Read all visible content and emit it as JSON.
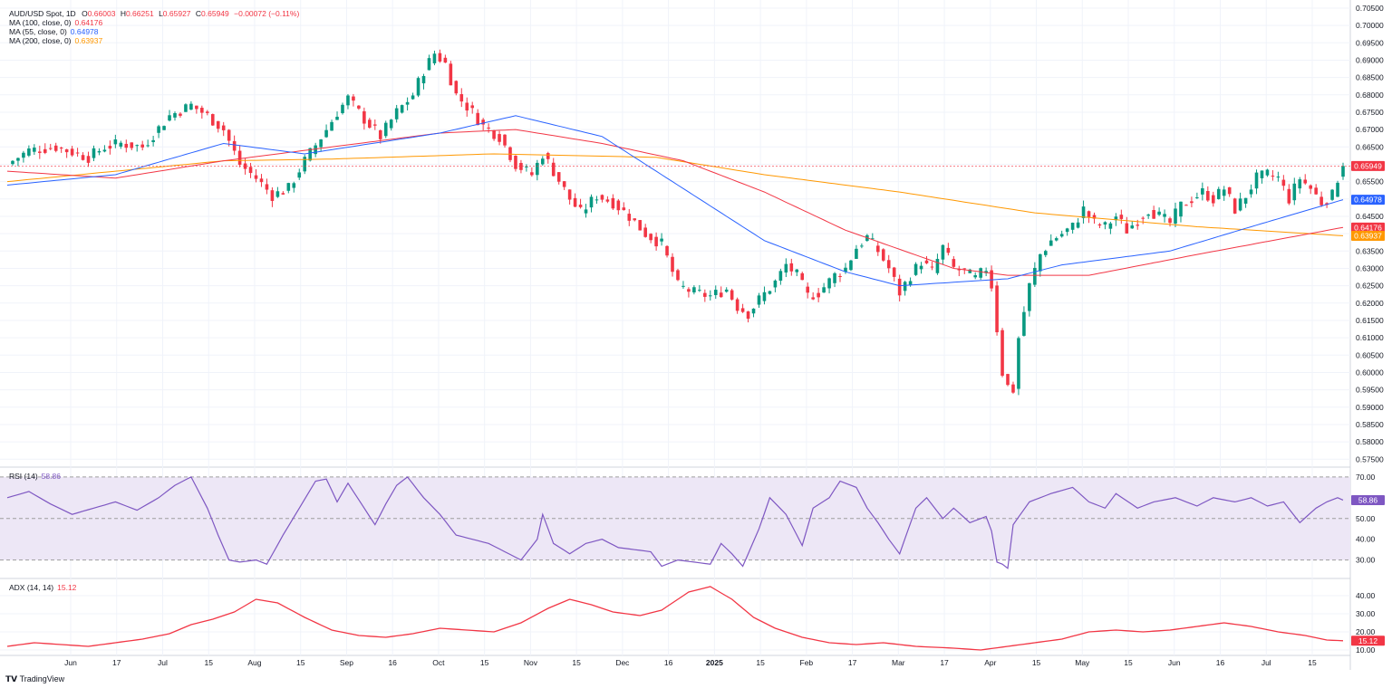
{
  "header": {
    "symbol": "AUD/USD Spot, 1D",
    "o_label": "O",
    "o": "0.66003",
    "h_label": "H",
    "h": "0.66251",
    "l_label": "L",
    "l": "0.65927",
    "c_label": "C",
    "c": "0.65949",
    "change": "−0.00072 (−0.11%)"
  },
  "indicators": [
    {
      "label": "MA (100, close, 0)",
      "value": "0.64176",
      "color": "#f23645"
    },
    {
      "label": "MA (55, close, 0)",
      "value": "0.64978",
      "color": "#2962ff"
    },
    {
      "label": "MA (200, close, 0)",
      "value": "0.63937",
      "color": "#ff9800"
    }
  ],
  "rsi": {
    "label": "RSI (14)",
    "value": "58.86",
    "color": "#7e57c2"
  },
  "adx": {
    "label": "ADX (14, 14)",
    "value": "15.12",
    "color": "#f23645"
  },
  "branding": "TradingView",
  "colors": {
    "up": "#089981",
    "down": "#f23645",
    "grid": "#f0f3fa",
    "rsi_band": "#ede7f6"
  },
  "chart_data": [
    {
      "type": "candlestick",
      "title": "AUD/USD Spot, 1D",
      "ylim": [
        0.57325,
        0.70525
      ],
      "y_ticks": [
        "0.70500",
        "0.70000",
        "0.69500",
        "0.69000",
        "0.68500",
        "0.68000",
        "0.67500",
        "0.67000",
        "0.66500",
        "0.66000",
        "0.65500",
        "0.65000",
        "0.64500",
        "0.64000",
        "0.63500",
        "0.63000",
        "0.62500",
        "0.62000",
        "0.61500",
        "0.61000",
        "0.60500",
        "0.60000",
        "0.59500",
        "0.59000",
        "0.58500",
        "0.58000",
        "0.57500"
      ],
      "x_ticks": [
        "Jun",
        "17",
        "Jul",
        "15",
        "Aug",
        "15",
        "Sep",
        "16",
        "Oct",
        "15",
        "Nov",
        "15",
        "Dec",
        "16",
        "2025",
        "15",
        "Feb",
        "17",
        "Mar",
        "17",
        "Apr",
        "15",
        "May",
        "15",
        "Jun",
        "16",
        "Jul",
        "15"
      ],
      "close_anchors": [
        [
          0,
          0.66
        ],
        [
          4,
          0.664
        ],
        [
          9,
          0.665
        ],
        [
          15,
          0.662
        ],
        [
          18,
          0.665
        ],
        [
          21,
          0.666
        ],
        [
          25,
          0.665
        ],
        [
          30,
          0.674
        ],
        [
          34,
          0.677
        ],
        [
          37,
          0.674
        ],
        [
          40,
          0.67
        ],
        [
          43,
          0.66
        ],
        [
          46,
          0.656
        ],
        [
          49,
          0.651
        ],
        [
          52,
          0.653
        ],
        [
          55,
          0.661
        ],
        [
          59,
          0.67
        ],
        [
          61,
          0.675
        ],
        [
          63,
          0.679
        ],
        [
          66,
          0.673
        ],
        [
          69,
          0.668
        ],
        [
          72,
          0.675
        ],
        [
          75,
          0.68
        ],
        [
          77,
          0.687
        ],
        [
          79,
          0.692
        ],
        [
          81,
          0.689
        ],
        [
          83,
          0.68
        ],
        [
          86,
          0.675
        ],
        [
          88,
          0.671
        ],
        [
          91,
          0.668
        ],
        [
          94,
          0.66
        ],
        [
          97,
          0.657
        ],
        [
          99,
          0.663
        ],
        [
          101,
          0.658
        ],
        [
          104,
          0.65
        ],
        [
          106,
          0.646
        ],
        [
          109,
          0.651
        ],
        [
          112,
          0.649
        ],
        [
          115,
          0.645
        ],
        [
          118,
          0.64
        ],
        [
          121,
          0.637
        ],
        [
          124,
          0.625
        ],
        [
          127,
          0.623
        ],
        [
          130,
          0.622
        ],
        [
          133,
          0.624
        ],
        [
          135,
          0.619
        ],
        [
          137,
          0.617
        ],
        [
          139,
          0.621
        ],
        [
          142,
          0.626
        ],
        [
          144,
          0.631
        ],
        [
          146,
          0.628
        ],
        [
          148,
          0.622
        ],
        [
          150,
          0.623
        ],
        [
          153,
          0.628
        ],
        [
          155,
          0.63
        ],
        [
          157,
          0.636
        ],
        [
          159,
          0.639
        ],
        [
          161,
          0.635
        ],
        [
          163,
          0.63
        ],
        [
          165,
          0.623
        ],
        [
          167,
          0.628
        ],
        [
          169,
          0.632
        ],
        [
          171,
          0.629
        ],
        [
          173,
          0.636
        ],
        [
          175,
          0.63
        ],
        [
          177,
          0.629
        ],
        [
          179,
          0.627
        ],
        [
          181,
          0.63
        ],
        [
          182,
          0.625
        ],
        [
          184,
          0.6
        ],
        [
          185,
          0.596
        ],
        [
          186,
          0.595
        ],
        [
          187,
          0.61
        ],
        [
          189,
          0.625
        ],
        [
          191,
          0.634
        ],
        [
          193,
          0.638
        ],
        [
          195,
          0.64
        ],
        [
          197,
          0.642
        ],
        [
          199,
          0.647
        ],
        [
          201,
          0.643
        ],
        [
          203,
          0.642
        ],
        [
          205,
          0.645
        ],
        [
          207,
          0.641
        ],
        [
          209,
          0.644
        ],
        [
          211,
          0.647
        ],
        [
          213,
          0.645
        ],
        [
          215,
          0.643
        ],
        [
          217,
          0.648
        ],
        [
          219,
          0.65
        ],
        [
          221,
          0.652
        ],
        [
          223,
          0.65
        ],
        [
          225,
          0.653
        ],
        [
          227,
          0.647
        ],
        [
          229,
          0.651
        ],
        [
          231,
          0.656
        ],
        [
          233,
          0.657
        ],
        [
          235,
          0.656
        ],
        [
          237,
          0.65
        ],
        [
          239,
          0.656
        ],
        [
          241,
          0.653
        ],
        [
          243,
          0.649
        ],
        [
          245,
          0.651
        ],
        [
          246,
          0.656
        ],
        [
          247,
          0.6595
        ]
      ],
      "ma_anchors": {
        "ma55": [
          [
            0,
            0.654
          ],
          [
            20,
            0.657
          ],
          [
            40,
            0.666
          ],
          [
            55,
            0.663
          ],
          [
            80,
            0.669
          ],
          [
            94,
            0.674
          ],
          [
            110,
            0.668
          ],
          [
            125,
            0.653
          ],
          [
            140,
            0.638
          ],
          [
            155,
            0.629
          ],
          [
            165,
            0.625
          ],
          [
            175,
            0.626
          ],
          [
            185,
            0.627
          ],
          [
            195,
            0.631
          ],
          [
            215,
            0.635
          ],
          [
            230,
            0.642
          ],
          [
            247,
            0.6498
          ]
        ],
        "ma100": [
          [
            0,
            0.658
          ],
          [
            20,
            0.656
          ],
          [
            40,
            0.661
          ],
          [
            60,
            0.665
          ],
          [
            80,
            0.669
          ],
          [
            94,
            0.67
          ],
          [
            110,
            0.666
          ],
          [
            125,
            0.661
          ],
          [
            140,
            0.652
          ],
          [
            155,
            0.641
          ],
          [
            175,
            0.63
          ],
          [
            185,
            0.628
          ],
          [
            200,
            0.628
          ],
          [
            220,
            0.634
          ],
          [
            247,
            0.6418
          ]
        ],
        "ma200": [
          [
            0,
            0.655
          ],
          [
            20,
            0.658
          ],
          [
            40,
            0.661
          ],
          [
            60,
            0.6615
          ],
          [
            90,
            0.663
          ],
          [
            120,
            0.662
          ],
          [
            140,
            0.657
          ],
          [
            165,
            0.652
          ],
          [
            190,
            0.646
          ],
          [
            220,
            0.642
          ],
          [
            247,
            0.6394
          ]
        ]
      },
      "last_labels": {
        "close": "0.65949",
        "ma55": "0.64978",
        "ma100": "0.64176",
        "ma200": "0.63937"
      }
    },
    {
      "type": "line",
      "title": "RSI (14)",
      "ylim": [
        22,
        73
      ],
      "y_ticks": [
        "70.00",
        "60.00",
        "50.00",
        "40.00",
        "30.00"
      ],
      "bands": [
        70,
        50,
        30
      ],
      "anchors": [
        [
          0,
          60
        ],
        [
          4,
          63
        ],
        [
          8,
          57
        ],
        [
          12,
          52
        ],
        [
          16,
          55
        ],
        [
          20,
          58
        ],
        [
          24,
          54
        ],
        [
          28,
          60
        ],
        [
          31,
          66
        ],
        [
          34,
          70
        ],
        [
          37,
          55
        ],
        [
          39,
          42
        ],
        [
          41,
          30
        ],
        [
          43,
          29
        ],
        [
          46,
          30
        ],
        [
          48,
          28
        ],
        [
          51,
          42
        ],
        [
          54,
          55
        ],
        [
          57,
          68
        ],
        [
          59,
          69
        ],
        [
          61,
          58
        ],
        [
          63,
          67
        ],
        [
          66,
          55
        ],
        [
          68,
          47
        ],
        [
          70,
          57
        ],
        [
          72,
          66
        ],
        [
          74,
          70
        ],
        [
          77,
          60
        ],
        [
          80,
          52
        ],
        [
          83,
          42
        ],
        [
          86,
          40
        ],
        [
          89,
          38
        ],
        [
          92,
          34
        ],
        [
          95,
          30
        ],
        [
          98,
          40
        ],
        [
          99,
          52
        ],
        [
          101,
          38
        ],
        [
          104,
          33
        ],
        [
          107,
          38
        ],
        [
          110,
          40
        ],
        [
          113,
          36
        ],
        [
          116,
          35
        ],
        [
          119,
          34
        ],
        [
          121,
          27
        ],
        [
          124,
          30
        ],
        [
          127,
          29
        ],
        [
          130,
          28
        ],
        [
          132,
          38
        ],
        [
          134,
          33
        ],
        [
          136,
          27
        ],
        [
          139,
          45
        ],
        [
          141,
          60
        ],
        [
          144,
          52
        ],
        [
          147,
          37
        ],
        [
          149,
          55
        ],
        [
          152,
          60
        ],
        [
          154,
          68
        ],
        [
          157,
          65
        ],
        [
          159,
          55
        ],
        [
          161,
          48
        ],
        [
          163,
          40
        ],
        [
          165,
          33
        ],
        [
          168,
          55
        ],
        [
          170,
          60
        ],
        [
          173,
          50
        ],
        [
          175,
          55
        ],
        [
          178,
          48
        ],
        [
          181,
          51
        ],
        [
          182,
          44
        ],
        [
          183,
          29
        ],
        [
          184,
          28
        ],
        [
          185,
          26
        ],
        [
          186,
          47
        ],
        [
          189,
          58
        ],
        [
          193,
          62
        ],
        [
          197,
          65
        ],
        [
          200,
          58
        ],
        [
          203,
          55
        ],
        [
          205,
          62
        ],
        [
          209,
          55
        ],
        [
          212,
          58
        ],
        [
          216,
          60
        ],
        [
          220,
          56
        ],
        [
          223,
          60
        ],
        [
          227,
          58
        ],
        [
          230,
          60
        ],
        [
          233,
          56
        ],
        [
          236,
          58
        ],
        [
          239,
          48
        ],
        [
          242,
          55
        ],
        [
          244,
          58
        ],
        [
          246,
          60
        ],
        [
          247,
          58.86
        ]
      ],
      "last_label": "58.86"
    },
    {
      "type": "line",
      "title": "ADX (14, 14)",
      "ylim": [
        8,
        48
      ],
      "y_ticks": [
        "40.00",
        "30.00",
        "20.00",
        "10.00"
      ],
      "anchors": [
        [
          0,
          12
        ],
        [
          5,
          14
        ],
        [
          10,
          13
        ],
        [
          15,
          12
        ],
        [
          20,
          14
        ],
        [
          25,
          16
        ],
        [
          30,
          19
        ],
        [
          34,
          24
        ],
        [
          38,
          27
        ],
        [
          42,
          31
        ],
        [
          46,
          38
        ],
        [
          50,
          36
        ],
        [
          55,
          28
        ],
        [
          60,
          21
        ],
        [
          65,
          18
        ],
        [
          70,
          17
        ],
        [
          75,
          19
        ],
        [
          80,
          22
        ],
        [
          85,
          21
        ],
        [
          90,
          20
        ],
        [
          95,
          25
        ],
        [
          100,
          33
        ],
        [
          104,
          38
        ],
        [
          108,
          35
        ],
        [
          112,
          31
        ],
        [
          117,
          29
        ],
        [
          121,
          32
        ],
        [
          126,
          42
        ],
        [
          130,
          45
        ],
        [
          134,
          38
        ],
        [
          138,
          28
        ],
        [
          142,
          22
        ],
        [
          147,
          17
        ],
        [
          152,
          14
        ],
        [
          157,
          13
        ],
        [
          162,
          14
        ],
        [
          168,
          12
        ],
        [
          175,
          11
        ],
        [
          180,
          10
        ],
        [
          185,
          12
        ],
        [
          190,
          14
        ],
        [
          195,
          16
        ],
        [
          200,
          20
        ],
        [
          205,
          21
        ],
        [
          210,
          20
        ],
        [
          215,
          21
        ],
        [
          220,
          23
        ],
        [
          225,
          25
        ],
        [
          230,
          23
        ],
        [
          235,
          20
        ],
        [
          240,
          18
        ],
        [
          244,
          15.5
        ],
        [
          247,
          15.12
        ]
      ],
      "last_label": "15.12"
    }
  ]
}
